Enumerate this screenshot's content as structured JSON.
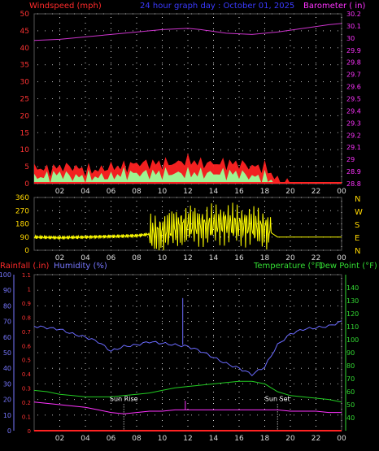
{
  "panel_wind": {
    "left_title": "Windspeed (mph)",
    "center_title": "24 hour graph day : October 01, 2025",
    "right_title": "Barometer ( in)",
    "colors": {
      "left_title": "#ff2a2a",
      "center_title": "#3a3aff",
      "right_title": "#ff33ff"
    }
  },
  "panel_direction": {
    "compass": [
      "N",
      "W",
      "S",
      "E",
      "N"
    ],
    "compass_color": "#ffd700"
  },
  "panel_bottom": {
    "left_title_rain": "Rainfall (.in)",
    "left_title_humidity": "Humidity (%)",
    "right_title_temp": "Temperature (°F)",
    "right_title_dew": "Dew Point (°F)",
    "sunrise_label": "Sun Rise",
    "sunset_label": "Sun Set",
    "colors": {
      "rain": "#ff2a2a",
      "humidity": "#7777ff",
      "temp": "#33dd33",
      "dew": "#33dd33",
      "temperature_line": "#22cc22",
      "dewpoint_line": "#ff33ff",
      "humidity_line": "#6b6bff"
    }
  },
  "chart_data": [
    {
      "type": "area",
      "title": "24 hour graph day : October 01, 2025",
      "xlabel": "",
      "x_ticks": [
        "02",
        "04",
        "06",
        "08",
        "10",
        "12",
        "14",
        "16",
        "18",
        "20",
        "22",
        "00"
      ],
      "x_range_hours": [
        0,
        24
      ],
      "y_left": {
        "label": "Windspeed (mph)",
        "ylim": [
          0,
          50
        ],
        "ticks": [
          "0",
          "5",
          "10",
          "15",
          "20",
          "25",
          "30",
          "35",
          "40",
          "45",
          "50"
        ]
      },
      "y_right": {
        "label": "Barometer ( in)",
        "ylim": [
          28.8,
          30.2
        ],
        "ticks": [
          "28.8",
          "28.9",
          "29",
          "29.1",
          "29.2",
          "29.3",
          "29.4",
          "29.5",
          "29.6",
          "29.7",
          "29.8",
          "29.9",
          "30",
          "30.1",
          "30.2"
        ]
      },
      "grid": true,
      "series": [
        {
          "name": "Windspeed (mph)",
          "axis": "left",
          "color": "#ff2222",
          "hours": [
            0,
            1,
            2,
            3,
            4,
            5,
            6,
            7,
            8,
            9,
            10,
            11,
            12,
            13,
            14,
            15,
            16,
            17,
            18,
            19,
            20,
            21,
            22,
            23,
            24
          ],
          "values": [
            5,
            4,
            5,
            5,
            4,
            4,
            5,
            5,
            6,
            6,
            6,
            6,
            7,
            6,
            6,
            6,
            6,
            5,
            5,
            1,
            0,
            0,
            0,
            0,
            0
          ]
        },
        {
          "name": "Wind gust band (mph)",
          "axis": "left",
          "color": "#99ff99",
          "hours": [
            0,
            1,
            2,
            3,
            4,
            5,
            6,
            7,
            8,
            9,
            10,
            11,
            12,
            13,
            14,
            15,
            16,
            17,
            18,
            19,
            20,
            21,
            22,
            23,
            24
          ],
          "values": [
            2,
            2,
            3,
            2,
            2,
            2,
            2,
            3,
            3,
            3,
            3,
            3,
            3,
            3,
            3,
            3,
            3,
            2,
            2,
            0,
            0,
            0,
            0,
            0,
            0
          ]
        },
        {
          "name": "Barometer ( in)",
          "axis": "right",
          "color": "#cc33cc",
          "hours": [
            0,
            2,
            4,
            6,
            8,
            10,
            12,
            13,
            15,
            17,
            19,
            21,
            23,
            24
          ],
          "values": [
            29.98,
            29.99,
            30.01,
            30.03,
            30.05,
            30.07,
            30.08,
            30.07,
            30.04,
            30.03,
            30.05,
            30.08,
            30.11,
            30.12
          ]
        }
      ]
    },
    {
      "type": "line",
      "title": "",
      "x_ticks": [
        "02",
        "04",
        "06",
        "08",
        "10",
        "12",
        "14",
        "16",
        "18",
        "20",
        "22",
        "00"
      ],
      "x_range_hours": [
        0,
        24
      ],
      "y_left": {
        "label": "",
        "ylim": [
          0,
          360
        ],
        "ticks": [
          "0",
          "90",
          "180",
          "270",
          "360"
        ]
      },
      "right_labels": [
        "N",
        "W",
        "S",
        "E",
        "N"
      ],
      "grid": true,
      "series": [
        {
          "name": "Wind direction",
          "color": "#ffff00",
          "hours": [
            0,
            2,
            4,
            6,
            8,
            10,
            11,
            12,
            13,
            14,
            15,
            16,
            17,
            18,
            19,
            20,
            24
          ],
          "values": [
            90,
            85,
            90,
            95,
            100,
            120,
            150,
            170,
            160,
            175,
            180,
            170,
            160,
            150,
            90,
            90,
            90
          ]
        }
      ]
    },
    {
      "type": "line",
      "title": "",
      "x_ticks": [
        "02",
        "04",
        "06",
        "08",
        "10",
        "12",
        "14",
        "16",
        "18",
        "20",
        "22",
        "00"
      ],
      "x_range_hours": [
        0,
        24
      ],
      "y_left_rain": {
        "label": "Rainfall (.in)",
        "ylim": [
          0,
          1.1
        ],
        "ticks": [
          "0",
          "0.1",
          "0.2",
          "0.3",
          "0.4",
          "0.5",
          "0.6",
          "0.7",
          "0.8",
          "0.9",
          "1",
          "1.1"
        ]
      },
      "y_left_humidity": {
        "label": "Humidity (%)",
        "ylim": [
          0,
          100
        ],
        "ticks": [
          "0",
          "10",
          "20",
          "30",
          "40",
          "50",
          "60",
          "70",
          "80",
          "90",
          "100"
        ]
      },
      "y_right": {
        "label": "Temperature (°F)",
        "ylim": [
          30,
          150
        ],
        "ticks": [
          "40",
          "50",
          "60",
          "70",
          "80",
          "90",
          "100",
          "110",
          "120",
          "130",
          "140"
        ]
      },
      "grid": true,
      "annotations": [
        {
          "text": "Sun Rise",
          "hour": 7.0
        },
        {
          "text": "Sun Set",
          "hour": 19.0
        }
      ],
      "series": [
        {
          "name": "Humidity (%)",
          "axis": "humidity",
          "color": "#6b6bff",
          "hours": [
            0,
            1,
            2,
            3,
            4,
            5,
            6,
            7,
            8,
            9,
            10,
            11,
            12,
            13,
            14,
            15,
            16,
            17,
            18,
            19,
            20,
            21,
            22,
            23,
            24
          ],
          "values": [
            67,
            66,
            65,
            62,
            60,
            57,
            51,
            54,
            55,
            57,
            56,
            55,
            54,
            51,
            47,
            43,
            40,
            36,
            41,
            55,
            62,
            65,
            66,
            67,
            70
          ]
        },
        {
          "name": "Temperature (°F)",
          "axis": "right",
          "color": "#22cc22",
          "hours": [
            0,
            1,
            2,
            3,
            4,
            5,
            6,
            7,
            8,
            9,
            10,
            11,
            12,
            13,
            14,
            15,
            16,
            17,
            18,
            19,
            20,
            21,
            22,
            23,
            24
          ],
          "values": [
            61,
            60,
            58,
            57,
            56,
            56,
            56,
            57,
            58,
            59,
            61,
            63,
            64,
            65,
            66,
            67,
            68,
            68,
            66,
            60,
            57,
            56,
            55,
            54,
            52
          ]
        },
        {
          "name": "Dew Point (°F)",
          "axis": "right",
          "color": "#ff33ff",
          "hours": [
            0,
            1,
            2,
            3,
            4,
            5,
            6,
            7,
            8,
            9,
            10,
            11,
            12,
            13,
            14,
            15,
            16,
            17,
            18,
            19,
            20,
            21,
            22,
            23,
            24
          ],
          "values": [
            52,
            51,
            50,
            49,
            48,
            46,
            44,
            43,
            44,
            45,
            45,
            46,
            46,
            46,
            46,
            46,
            46,
            46,
            46,
            46,
            45,
            45,
            45,
            44,
            44
          ]
        },
        {
          "name": "Rainfall (.in)",
          "axis": "rain",
          "color": "#ff2222",
          "hours": [
            0,
            24
          ],
          "values": [
            0,
            0
          ]
        }
      ]
    }
  ]
}
